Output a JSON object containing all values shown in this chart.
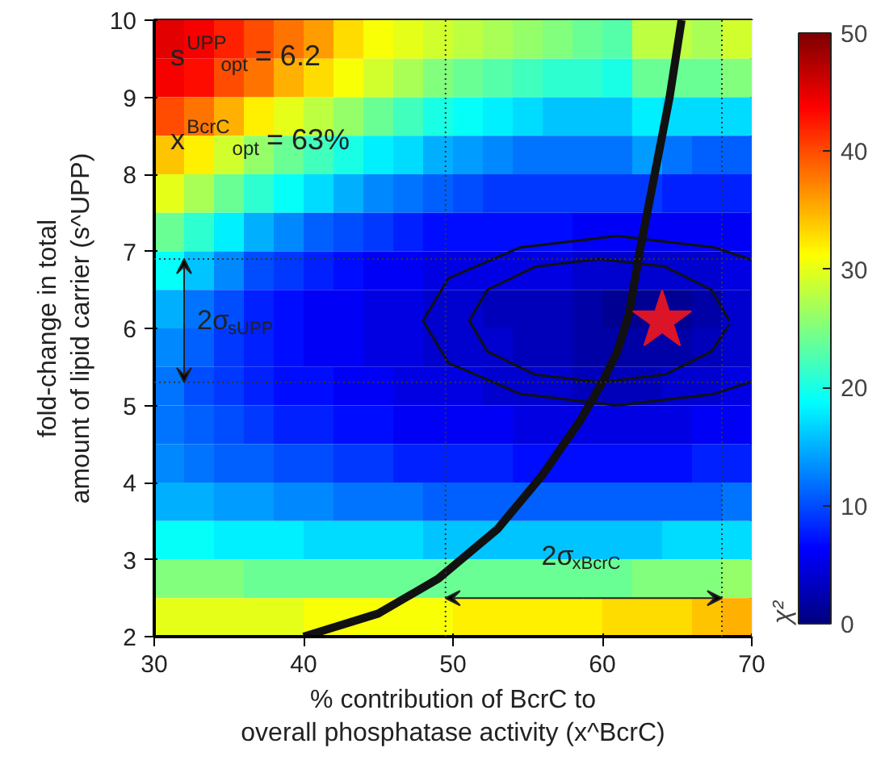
{
  "chart_data": {
    "type": "heatmap",
    "xlabel": "% contribution of BcrC to\noverall phosphatase activity (x^BcrC)",
    "ylabel": "fold-change in total\namount of lipid carrier (s^UPP)",
    "clabel": "χ²",
    "xlim": [
      30,
      70
    ],
    "xticks": [
      30,
      40,
      50,
      60,
      70
    ],
    "ylim": [
      2,
      10
    ],
    "yticks": [
      2,
      3,
      4,
      5,
      6,
      7,
      8,
      9,
      10
    ],
    "clim": [
      0,
      50
    ],
    "cticks": [
      0,
      10,
      20,
      30,
      40,
      50
    ],
    "x": [
      31,
      33,
      35,
      37,
      39,
      41,
      43,
      45,
      47,
      49,
      51,
      53,
      55,
      57,
      59,
      61,
      63,
      65,
      67,
      69
    ],
    "y": [
      9.75,
      9.25,
      8.75,
      8.25,
      7.75,
      7.25,
      6.75,
      6.25,
      5.75,
      5.25,
      4.75,
      4.25,
      3.75,
      3.25,
      2.75,
      2.25
    ],
    "cells": [
      [
        45,
        44,
        42,
        40,
        38,
        36,
        33,
        31,
        30,
        29,
        28,
        27,
        26,
        25,
        24,
        23,
        28,
        28,
        27,
        29
      ],
      [
        44,
        43,
        40,
        38,
        35,
        33,
        31,
        29,
        27,
        25,
        24,
        23,
        22,
        21,
        21,
        20,
        24,
        24,
        24,
        25
      ],
      [
        40,
        38,
        35,
        32,
        30,
        28,
        26,
        24,
        22,
        20,
        19,
        18,
        17,
        16,
        16,
        16,
        18,
        17,
        17,
        17
      ],
      [
        34,
        32,
        29,
        26,
        24,
        22,
        20,
        18,
        17,
        15,
        14,
        13,
        12,
        12,
        12,
        12,
        14,
        12,
        11,
        11
      ],
      [
        30,
        27,
        24,
        21,
        19,
        17,
        15,
        13,
        12,
        11,
        10,
        9,
        9,
        9,
        9,
        9,
        9,
        8,
        8,
        8
      ],
      [
        24,
        21,
        18,
        15,
        13,
        11,
        10,
        9,
        8,
        7,
        7,
        7,
        7,
        7,
        6,
        6,
        6,
        6,
        6,
        6
      ],
      [
        19,
        16,
        13,
        10,
        9,
        8,
        7,
        6,
        6,
        5,
        5,
        5,
        5,
        5,
        4,
        4,
        4,
        4,
        4,
        5
      ],
      [
        15,
        12,
        10,
        8,
        7,
        6,
        6,
        5,
        5,
        4,
        4,
        3,
        3,
        3,
        2,
        1,
        1,
        1,
        2,
        4
      ],
      [
        13,
        11,
        9,
        8,
        7,
        6,
        6,
        5,
        5,
        4,
        4,
        4,
        3,
        3,
        2,
        2,
        2,
        2,
        3,
        4
      ],
      [
        12,
        10,
        9,
        8,
        7,
        7,
        6,
        6,
        5,
        5,
        5,
        4,
        4,
        4,
        3,
        3,
        3,
        4,
        4,
        5
      ],
      [
        12,
        11,
        10,
        9,
        8,
        8,
        7,
        7,
        6,
        6,
        6,
        6,
        5,
        5,
        5,
        5,
        5,
        5,
        6,
        6
      ],
      [
        13,
        12,
        11,
        11,
        10,
        10,
        9,
        9,
        8,
        8,
        8,
        8,
        7,
        7,
        7,
        7,
        7,
        7,
        8,
        8
      ],
      [
        15,
        15,
        14,
        14,
        13,
        13,
        12,
        12,
        12,
        11,
        11,
        11,
        11,
        11,
        11,
        11,
        11,
        11,
        11,
        12
      ],
      [
        19,
        19,
        18,
        18,
        18,
        17,
        17,
        17,
        17,
        16,
        16,
        16,
        16,
        16,
        16,
        16,
        16,
        17,
        17,
        17
      ],
      [
        25,
        25,
        25,
        24,
        24,
        24,
        24,
        24,
        24,
        24,
        24,
        24,
        24,
        24,
        24,
        24,
        25,
        25,
        25,
        26
      ],
      [
        30,
        30,
        30,
        30,
        30,
        31,
        31,
        31,
        31,
        31,
        32,
        32,
        32,
        32,
        32,
        33,
        33,
        33,
        34,
        35
      ]
    ],
    "series": [
      {
        "type": "line",
        "color": "#111111",
        "x": [
          40,
          45,
          49,
          53,
          56,
          58.5,
          60,
          61,
          61.8,
          62.5,
          63.5,
          64.5,
          65.3
        ],
        "values": [
          2,
          2.3,
          2.75,
          3.4,
          4.1,
          4.8,
          5.3,
          5.7,
          6.2,
          7,
          8,
          9,
          10
        ]
      },
      {
        "type": "line",
        "color": "#111111",
        "x": [
          70,
          67.5,
          61,
          54.5,
          49.7,
          48,
          49.7,
          54.5,
          61,
          67.5,
          70
        ],
        "values": [
          6.89,
          7.05,
          7.2,
          7.05,
          6.65,
          6.1,
          5.55,
          5.15,
          5.0,
          5.15,
          5.31
        ]
      },
      {
        "type": "line",
        "color": "#111111",
        "x": [
          68.5,
          67.3,
          64.2,
          59.8,
          55.5,
          52.3,
          51.1,
          52.3,
          55.5,
          59.8,
          64.2,
          67.3,
          68.5
        ],
        "values": [
          6.1,
          6.5,
          6.8,
          6.9,
          6.8,
          6.5,
          6.1,
          5.7,
          5.4,
          5.3,
          5.4,
          5.7,
          6.05
        ]
      },
      {
        "type": "scatter",
        "marker": "star",
        "color": "#dc1428",
        "x": [
          64
        ],
        "values": [
          6.1
        ]
      }
    ],
    "ref_lines": [
      {
        "axis": "y",
        "value": 5.3,
        "line_style": "dotted"
      },
      {
        "axis": "y",
        "value": 6.9,
        "line_style": "dotted"
      },
      {
        "axis": "x",
        "value": 49.5,
        "line_style": "dotted"
      },
      {
        "axis": "x",
        "value": 68,
        "line_style": "dotted"
      }
    ],
    "annotations": [
      "s$^{UPP}$$_{opt}$ = 6.2",
      "x$^{BcrC}$$_{opt}$ = 63%",
      {
        "text": "2σ$_{sUPP}$",
        "x": 32,
        "y": 6.9
      },
      {
        "text": "2σ$_{xBcrC}$",
        "x": 68,
        "y": 2.5
      }
    ]
  }
}
